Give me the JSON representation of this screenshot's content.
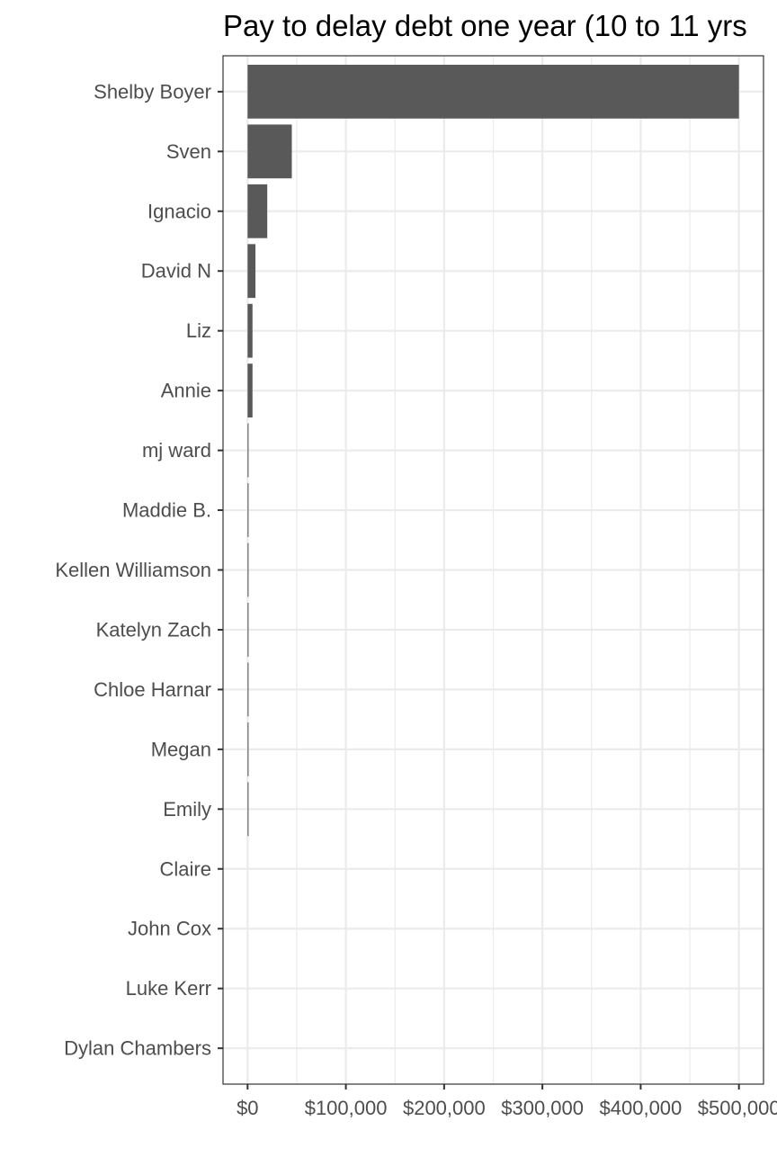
{
  "chart_data": {
    "type": "bar",
    "orientation": "horizontal",
    "title": "Pay to delay debt one year (10 to 11 yrs",
    "xlabel": "",
    "ylabel": "",
    "categories": [
      "Shelby Boyer",
      "Sven",
      "Ignacio",
      "David N",
      "Liz",
      "Annie",
      "mj ward",
      "Maddie B.",
      "Kellen Williamson",
      "Katelyn Zach",
      "Chloe Harnar",
      "Megan",
      "Emily",
      "Claire",
      "John Cox",
      "Luke Kerr",
      "Dylan Chambers"
    ],
    "values": [
      500000,
      45000,
      20000,
      8000,
      5000,
      5000,
      1000,
      1000,
      1000,
      1000,
      1000,
      1000,
      1000,
      0,
      0,
      0,
      0
    ],
    "xlim": [
      -25000,
      525000
    ],
    "xticks": [
      0,
      100000,
      200000,
      300000,
      400000,
      500000
    ],
    "xtick_labels": [
      "$0",
      "$100,000",
      "$200,000",
      "$300,000",
      "$400,000",
      "$500,000"
    ],
    "grid": true,
    "colors": {
      "bar": "#595959",
      "grid": "#ebebeb",
      "panel_border": "#333333"
    }
  }
}
